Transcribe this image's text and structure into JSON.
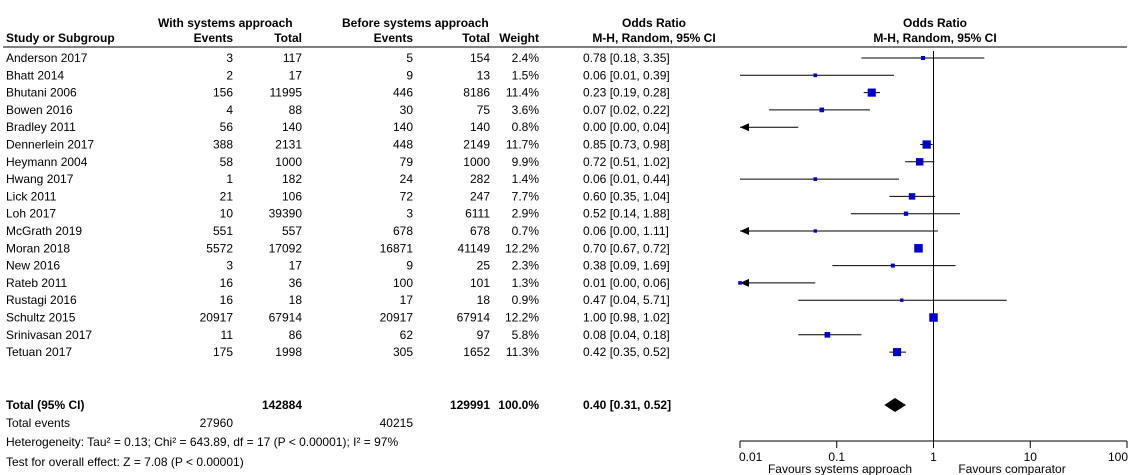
{
  "headers": {
    "group1": "With systems approach",
    "group2": "Before systems approach",
    "study": "Study or Subgroup",
    "events1": "Events",
    "total1": "Total",
    "events2": "Events",
    "total2": "Total",
    "weight": "Weight",
    "or_title": "Odds Ratio",
    "or_method": "M-H, Random, 95% CI",
    "plot_title": "Odds Ratio",
    "plot_method": "M-H, Random, 95% CI"
  },
  "studies": [
    {
      "name": "Anderson 2017",
      "e1": "3",
      "t1": "117",
      "e2": "5",
      "t2": "154",
      "weight": "2.4%",
      "ci": "0.78 [0.18, 3.35]"
    },
    {
      "name": "Bhatt 2014",
      "e1": "2",
      "t1": "17",
      "e2": "9",
      "t2": "13",
      "weight": "1.5%",
      "ci": "0.06 [0.01, 0.39]"
    },
    {
      "name": "Bhutani 2006",
      "e1": "156",
      "t1": "11995",
      "e2": "446",
      "t2": "8186",
      "weight": "11.4%",
      "ci": "0.23 [0.19, 0.28]"
    },
    {
      "name": "Bowen 2016",
      "e1": "4",
      "t1": "88",
      "e2": "30",
      "t2": "75",
      "weight": "3.6%",
      "ci": "0.07 [0.02, 0.22]"
    },
    {
      "name": "Bradley 2011",
      "e1": "56",
      "t1": "140",
      "e2": "140",
      "t2": "140",
      "weight": "0.8%",
      "ci": "0.00 [0.00, 0.04]"
    },
    {
      "name": "Dennerlein 2017",
      "e1": "388",
      "t1": "2131",
      "e2": "448",
      "t2": "2149",
      "weight": "11.7%",
      "ci": "0.85 [0.73, 0.98]"
    },
    {
      "name": "Heymann 2004",
      "e1": "58",
      "t1": "1000",
      "e2": "79",
      "t2": "1000",
      "weight": "9.9%",
      "ci": "0.72 [0.51, 1.02]"
    },
    {
      "name": "Hwang 2017",
      "e1": "1",
      "t1": "182",
      "e2": "24",
      "t2": "282",
      "weight": "1.4%",
      "ci": "0.06 [0.01, 0.44]"
    },
    {
      "name": "Lick 2011",
      "e1": "21",
      "t1": "106",
      "e2": "72",
      "t2": "247",
      "weight": "7.7%",
      "ci": "0.60 [0.35, 1.04]"
    },
    {
      "name": "Loh 2017",
      "e1": "10",
      "t1": "39390",
      "e2": "3",
      "t2": "6111",
      "weight": "2.9%",
      "ci": "0.52 [0.14, 1.88]"
    },
    {
      "name": "McGrath 2019",
      "e1": "551",
      "t1": "557",
      "e2": "678",
      "t2": "678",
      "weight": "0.7%",
      "ci": "0.06 [0.00, 1.11]"
    },
    {
      "name": "Moran 2018",
      "e1": "5572",
      "t1": "17092",
      "e2": "16871",
      "t2": "41149",
      "weight": "12.2%",
      "ci": "0.70 [0.67, 0.72]"
    },
    {
      "name": "New 2016",
      "e1": "3",
      "t1": "17",
      "e2": "9",
      "t2": "25",
      "weight": "2.3%",
      "ci": "0.38 [0.09, 1.69]"
    },
    {
      "name": "Rateb 2011",
      "e1": "16",
      "t1": "36",
      "e2": "100",
      "t2": "101",
      "weight": "1.3%",
      "ci": "0.01 [0.00, 0.06]"
    },
    {
      "name": "Rustagi 2016",
      "e1": "16",
      "t1": "18",
      "e2": "17",
      "t2": "18",
      "weight": "0.9%",
      "ci": "0.47 [0.04, 5.71]"
    },
    {
      "name": "Schultz 2015",
      "e1": "20917",
      "t1": "67914",
      "e2": "20917",
      "t2": "67914",
      "weight": "12.2%",
      "ci": "1.00 [0.98, 1.02]"
    },
    {
      "name": "Srinivasan 2017",
      "e1": "11",
      "t1": "86",
      "e2": "62",
      "t2": "97",
      "weight": "5.8%",
      "ci": "0.08 [0.04, 0.18]"
    },
    {
      "name": "Tetuan 2017",
      "e1": "175",
      "t1": "1998",
      "e2": "305",
      "t2": "1652",
      "weight": "11.3%",
      "ci": "0.42 [0.35, 0.52]"
    }
  ],
  "total": {
    "name": "Total (95% CI)",
    "t1": "142884",
    "t2": "129991",
    "weight": "100.0%",
    "ci": "0.40 [0.31, 0.52]"
  },
  "total_events": {
    "label": "Total events",
    "e1": "27960",
    "e2": "40215"
  },
  "heterogeneity": "Heterogeneity: Tau² = 0.13; Chi² = 643.89, df = 17 (P < 0.00001); I² = 97%",
  "overall_effect": "Test for overall effect: Z = 7.08 (P < 0.00001)",
  "axis": {
    "ticks": [
      "0.01",
      "0.1",
      "1",
      "10",
      "100"
    ],
    "favours_left": "Favours systems approach",
    "favours_right": "Favours comparator"
  },
  "colors": {
    "marker": "#0000cc",
    "line": "#000000"
  },
  "chart_data": {
    "type": "forest",
    "scale": "log",
    "xlim": [
      0.01,
      100
    ],
    "reference_line": 1,
    "points": [
      {
        "study": "Anderson 2017",
        "or": 0.78,
        "lower": 0.18,
        "upper": 3.35,
        "weight": 2.4
      },
      {
        "study": "Bhatt 2014",
        "or": 0.06,
        "lower": 0.01,
        "upper": 0.39,
        "weight": 1.5
      },
      {
        "study": "Bhutani 2006",
        "or": 0.23,
        "lower": 0.19,
        "upper": 0.28,
        "weight": 11.4
      },
      {
        "study": "Bowen 2016",
        "or": 0.07,
        "lower": 0.02,
        "upper": 0.22,
        "weight": 3.6
      },
      {
        "study": "Bradley 2011",
        "or": 0.0,
        "lower": 0.0,
        "upper": 0.04,
        "weight": 0.8
      },
      {
        "study": "Dennerlein 2017",
        "or": 0.85,
        "lower": 0.73,
        "upper": 0.98,
        "weight": 11.7
      },
      {
        "study": "Heymann 2004",
        "or": 0.72,
        "lower": 0.51,
        "upper": 1.02,
        "weight": 9.9
      },
      {
        "study": "Hwang 2017",
        "or": 0.06,
        "lower": 0.01,
        "upper": 0.44,
        "weight": 1.4
      },
      {
        "study": "Lick 2011",
        "or": 0.6,
        "lower": 0.35,
        "upper": 1.04,
        "weight": 7.7
      },
      {
        "study": "Loh 2017",
        "or": 0.52,
        "lower": 0.14,
        "upper": 1.88,
        "weight": 2.9
      },
      {
        "study": "McGrath 2019",
        "or": 0.06,
        "lower": 0.0,
        "upper": 1.11,
        "weight": 0.7
      },
      {
        "study": "Moran 2018",
        "or": 0.7,
        "lower": 0.67,
        "upper": 0.72,
        "weight": 12.2
      },
      {
        "study": "New 2016",
        "or": 0.38,
        "lower": 0.09,
        "upper": 1.69,
        "weight": 2.3
      },
      {
        "study": "Rateb 2011",
        "or": 0.01,
        "lower": 0.0,
        "upper": 0.06,
        "weight": 1.3
      },
      {
        "study": "Rustagi 2016",
        "or": 0.47,
        "lower": 0.04,
        "upper": 5.71,
        "weight": 0.9
      },
      {
        "study": "Schultz 2015",
        "or": 1.0,
        "lower": 0.98,
        "upper": 1.02,
        "weight": 12.2
      },
      {
        "study": "Srinivasan 2017",
        "or": 0.08,
        "lower": 0.04,
        "upper": 0.18,
        "weight": 5.8
      },
      {
        "study": "Tetuan 2017",
        "or": 0.42,
        "lower": 0.35,
        "upper": 0.52,
        "weight": 11.3
      }
    ],
    "pooled": {
      "or": 0.4,
      "lower": 0.31,
      "upper": 0.52
    }
  }
}
